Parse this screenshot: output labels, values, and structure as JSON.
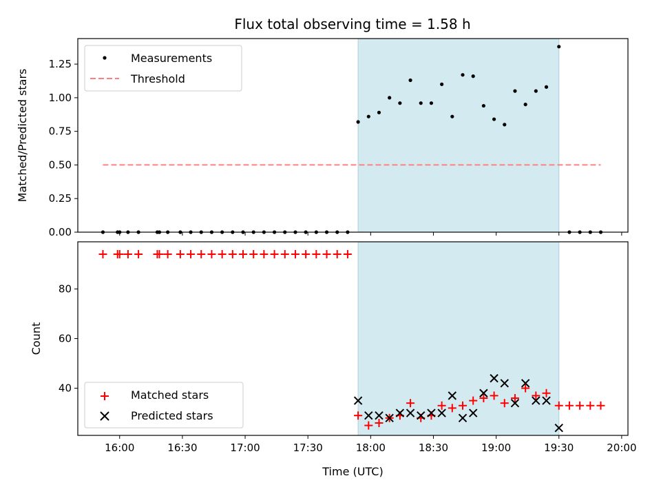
{
  "figure": {
    "title": "Flux total observing time = 1.58 h",
    "xlabel": "Time (UTC)"
  },
  "chart_data": [
    {
      "type": "scatter",
      "title": "Flux total observing time = 1.58 h",
      "xlabel": "",
      "ylabel": "Matched/Predicted stars",
      "xlim": [
        "15:40",
        "20:03"
      ],
      "ylim": [
        0,
        1.44
      ],
      "yticks": [
        0.0,
        0.25,
        0.5,
        0.75,
        1.0,
        1.25
      ],
      "ytick_labels": [
        "0.00",
        "0.25",
        "0.50",
        "0.75",
        "1.00",
        "1.25"
      ],
      "legend_position": "upper-left",
      "shaded_region": {
        "x": [
          "17:54",
          "19:30"
        ],
        "color": "#d4eaf1"
      },
      "series": [
        {
          "name": "Measurements",
          "marker": "dot",
          "color": "#000000",
          "x": [
            "15:52",
            "15:59",
            "16:00",
            "16:04",
            "16:09",
            "16:18",
            "16:19",
            "16:23",
            "16:29",
            "16:34",
            "16:39",
            "16:44",
            "16:49",
            "16:54",
            "16:59",
            "17:04",
            "17:09",
            "17:14",
            "17:19",
            "17:24",
            "17:29",
            "17:34",
            "17:39",
            "17:44",
            "17:49",
            "17:54",
            "17:59",
            "18:04",
            "18:09",
            "18:14",
            "18:19",
            "18:24",
            "18:29",
            "18:34",
            "18:39",
            "18:44",
            "18:49",
            "18:54",
            "18:59",
            "19:04",
            "19:09",
            "19:14",
            "19:19",
            "19:24",
            "19:30",
            "19:35",
            "19:40",
            "19:45",
            "19:50"
          ],
          "y": [
            0,
            0,
            0,
            0,
            0,
            0,
            0,
            0,
            0,
            0,
            0,
            0,
            0,
            0,
            0,
            0,
            0,
            0,
            0,
            0,
            0,
            0,
            0,
            0,
            0,
            0.82,
            0.86,
            0.89,
            1.0,
            0.96,
            1.13,
            0.96,
            0.96,
            1.1,
            0.86,
            1.17,
            1.16,
            0.94,
            0.84,
            0.8,
            1.05,
            0.95,
            1.05,
            1.08,
            1.38,
            0,
            0,
            0,
            0
          ]
        },
        {
          "name": "Threshold",
          "marker": "dashed-line",
          "color": "#ff7f7f",
          "x": [
            "15:52",
            "19:50"
          ],
          "y": [
            0.5,
            0.5
          ]
        }
      ]
    },
    {
      "type": "scatter",
      "xlabel": "Time (UTC)",
      "ylabel": "Count",
      "xlim": [
        "15:40",
        "20:03"
      ],
      "ylim": [
        21,
        99
      ],
      "yticks": [
        40,
        60,
        80
      ],
      "ytick_labels": [
        "40",
        "60",
        "80"
      ],
      "xtick_labels": [
        "16:00",
        "16:30",
        "17:00",
        "17:30",
        "18:00",
        "18:30",
        "19:00",
        "19:30",
        "20:00"
      ],
      "legend_position": "lower-left",
      "shaded_region": {
        "x": [
          "17:54",
          "19:30"
        ],
        "color": "#d4eaf1"
      },
      "series": [
        {
          "name": "Matched stars",
          "marker": "plus",
          "color": "#ff0000",
          "x": [
            "15:52",
            "15:59",
            "16:00",
            "16:04",
            "16:09",
            "16:18",
            "16:19",
            "16:23",
            "16:29",
            "16:34",
            "16:39",
            "16:44",
            "16:49",
            "16:54",
            "16:59",
            "17:04",
            "17:09",
            "17:14",
            "17:19",
            "17:24",
            "17:29",
            "17:34",
            "17:39",
            "17:44",
            "17:49",
            "17:54",
            "17:59",
            "18:04",
            "18:09",
            "18:14",
            "18:19",
            "18:24",
            "18:29",
            "18:34",
            "18:39",
            "18:44",
            "18:49",
            "18:54",
            "18:59",
            "19:04",
            "19:09",
            "19:14",
            "19:19",
            "19:24",
            "19:30",
            "19:35",
            "19:40",
            "19:45",
            "19:50"
          ],
          "y": [
            94,
            94,
            94,
            94,
            94,
            94,
            94,
            94,
            94,
            94,
            94,
            94,
            94,
            94,
            94,
            94,
            94,
            94,
            94,
            94,
            94,
            94,
            94,
            94,
            94,
            29,
            25,
            26,
            28,
            29,
            34,
            28,
            29,
            33,
            32,
            33,
            35,
            36,
            37,
            34,
            36,
            40,
            37,
            38,
            33,
            33,
            33,
            33,
            33
          ]
        },
        {
          "name": "Predicted stars",
          "marker": "x",
          "color": "#000000",
          "x": [
            "17:54",
            "17:59",
            "18:04",
            "18:09",
            "18:14",
            "18:19",
            "18:24",
            "18:29",
            "18:34",
            "18:39",
            "18:44",
            "18:49",
            "18:54",
            "18:59",
            "19:04",
            "19:09",
            "19:14",
            "19:19",
            "19:24",
            "19:30"
          ],
          "y": [
            35,
            29,
            29,
            28,
            30,
            30,
            29,
            30,
            30,
            37,
            28,
            30,
            38,
            44,
            42,
            34,
            42,
            35,
            35,
            24
          ]
        }
      ]
    }
  ]
}
